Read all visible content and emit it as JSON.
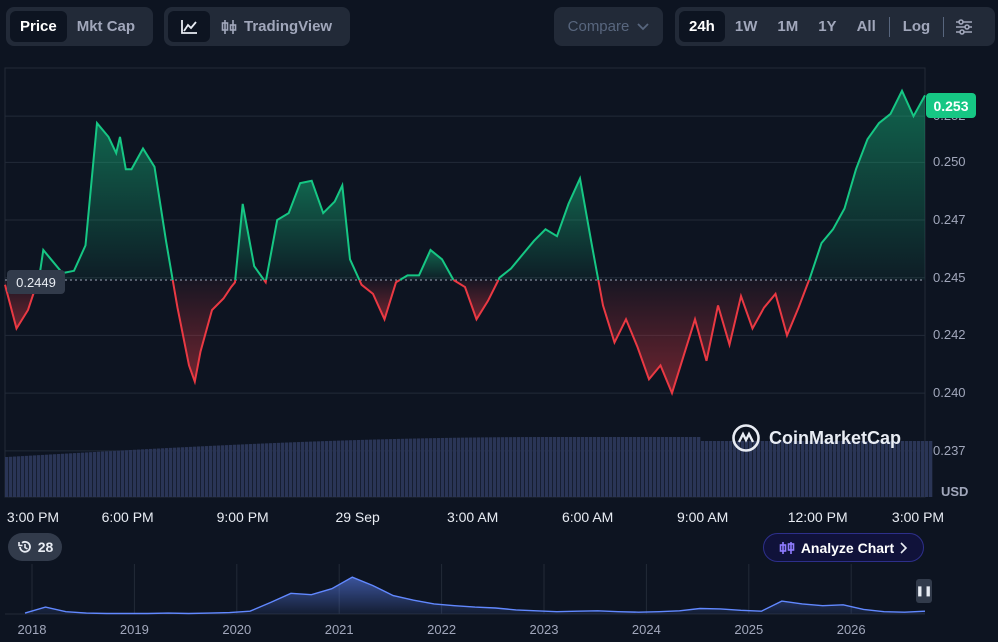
{
  "toolbar": {
    "price": "Price",
    "mktcap": "Mkt Cap",
    "tradingview": "TradingView",
    "compare": "Compare",
    "ranges": [
      "24h",
      "1W",
      "1M",
      "1Y",
      "All"
    ],
    "log": "Log"
  },
  "colors": {
    "up": "#16c784",
    "down": "#ea3943",
    "accent": "#6188ff"
  },
  "icons": [
    "line-chart-icon",
    "candlestick-icon",
    "chevron-down-icon",
    "sliders-icon",
    "history-icon",
    "analyze-icon",
    "chevron-right-icon",
    "pause-icon",
    "coinmarketcap-logo-icon"
  ],
  "badges": {
    "history_count": "28",
    "analyze_label": "Analyze Chart",
    "ref_price": "0.2449",
    "last_price": "0.253"
  },
  "brand": "CoinMarketCap",
  "chart_data": {
    "type": "area",
    "currency": "USD",
    "reference_price": 0.2449,
    "last_price": 0.253,
    "ylim": [
      0.2355,
      0.254
    ],
    "y_ticks": [
      "0.252",
      "0.250",
      "0.247",
      "0.245",
      "0.242",
      "0.240",
      "0.237"
    ],
    "y_tick_values": [
      0.252,
      0.25,
      0.2475,
      0.245,
      0.2425,
      0.24,
      0.2375
    ],
    "x_ticks": [
      "3:00 PM",
      "6:00 PM",
      "9:00 PM",
      "29 Sep",
      "3:00 AM",
      "6:00 AM",
      "9:00 AM",
      "12:00 PM",
      "3:00 PM"
    ],
    "x_tick_hours": [
      0.2,
      3.2,
      6.2,
      9.2,
      12.2,
      15.2,
      18.2,
      21.2,
      24.2
    ],
    "series": [
      {
        "x": [
          0,
          0.3,
          0.6,
          0.9,
          1.0,
          1.2,
          1.5,
          1.8,
          2.1,
          2.4,
          2.7,
          2.9,
          3.0,
          3.15,
          3.3,
          3.6,
          3.9,
          4.2,
          4.5,
          4.8,
          4.95,
          5.1,
          5.4,
          5.7,
          5.9,
          6.0,
          6.2,
          6.5,
          6.8,
          7.1,
          7.4,
          7.7,
          8.0,
          8.3,
          8.6,
          8.8,
          9.0,
          9.3,
          9.6,
          9.9,
          10.2,
          10.5,
          10.8,
          11.1,
          11.4,
          11.7,
          12.0,
          12.3,
          12.6,
          12.9,
          13.2,
          13.5,
          13.8,
          14.1,
          14.4,
          14.7,
          15.0,
          15.3,
          15.6,
          15.9,
          16.2,
          16.5,
          16.8,
          17.1,
          17.4,
          17.7,
          18.0,
          18.3,
          18.6,
          18.9,
          19.2,
          19.5,
          19.8,
          20.1,
          20.4,
          20.7,
          21.0,
          21.3,
          21.6,
          21.9,
          22.2,
          22.5,
          22.8,
          23.1,
          23.4,
          23.7,
          24.0
        ],
        "y": [
          0.2447,
          0.2428,
          0.2436,
          0.2451,
          0.2462,
          0.2458,
          0.2452,
          0.2453,
          0.2464,
          0.2517,
          0.2511,
          0.2504,
          0.2511,
          0.2497,
          0.2497,
          0.2506,
          0.2498,
          0.2466,
          0.2437,
          0.2412,
          0.2405,
          0.2418,
          0.2436,
          0.2441,
          0.2446,
          0.2448,
          0.2482,
          0.2455,
          0.2448,
          0.2475,
          0.2478,
          0.2491,
          0.2492,
          0.2478,
          0.2483,
          0.249,
          0.2458,
          0.2447,
          0.2443,
          0.2432,
          0.2448,
          0.2451,
          0.2451,
          0.2462,
          0.2458,
          0.2449,
          0.2446,
          0.2432,
          0.244,
          0.245,
          0.2454,
          0.246,
          0.2466,
          0.2471,
          0.2468,
          0.2482,
          0.2493,
          0.2465,
          0.2438,
          0.2422,
          0.2432,
          0.242,
          0.2406,
          0.2412,
          0.24,
          0.2416,
          0.2432,
          0.2414,
          0.2438,
          0.2421,
          0.2442,
          0.2428,
          0.2437,
          0.2443,
          0.2425,
          0.2437,
          0.245,
          0.2465,
          0.2471,
          0.248,
          0.2497,
          0.251,
          0.2517,
          0.2521,
          0.2531,
          0.252,
          0.2529
        ]
      }
    ],
    "volume_note": "volume bars",
    "navigator": {
      "x_ticks": [
        "2018",
        "2019",
        "2020",
        "2021",
        "2022",
        "2023",
        "2024",
        "2025",
        "2026"
      ],
      "series": [
        0.02,
        0.15,
        0.05,
        0.02,
        0.01,
        0.01,
        0.01,
        0.02,
        0.01,
        0.02,
        0.03,
        0.06,
        0.25,
        0.45,
        0.42,
        0.55,
        0.8,
        0.62,
        0.4,
        0.3,
        0.22,
        0.18,
        0.15,
        0.13,
        0.09,
        0.07,
        0.05,
        0.06,
        0.07,
        0.05,
        0.04,
        0.05,
        0.07,
        0.12,
        0.11,
        0.08,
        0.06,
        0.28,
        0.22,
        0.18,
        0.2,
        0.1,
        0.05,
        0.04,
        0.06
      ]
    }
  }
}
